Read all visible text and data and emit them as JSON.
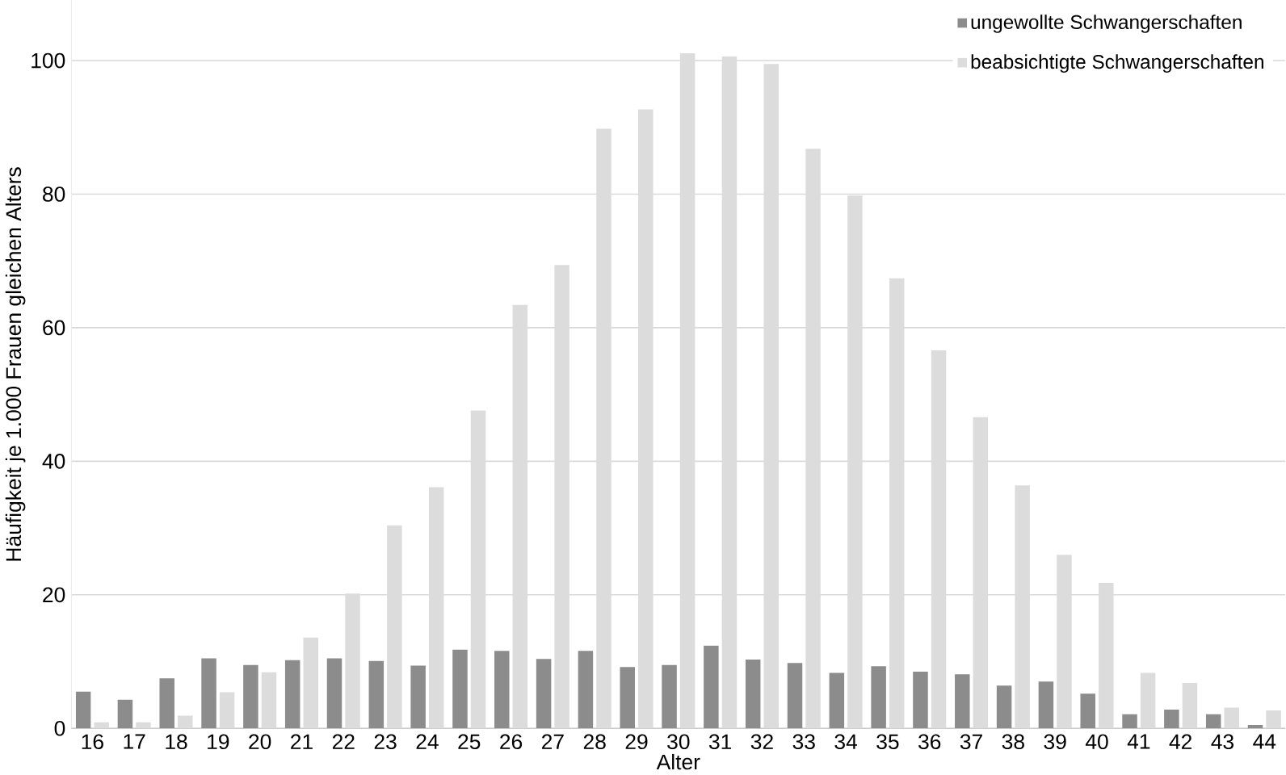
{
  "chart_data": {
    "type": "bar",
    "xlabel": "Alter",
    "ylabel": "Häufigkeit je 1.000 Frauen gleichen Alters",
    "categories": [
      "16",
      "17",
      "18",
      "19",
      "20",
      "21",
      "22",
      "23",
      "24",
      "25",
      "26",
      "27",
      "28",
      "29",
      "30",
      "31",
      "32",
      "33",
      "34",
      "35",
      "36",
      "37",
      "38",
      "39",
      "40",
      "41",
      "42",
      "43",
      "44"
    ],
    "series": [
      {
        "name": "ungewollte Schwangerschaften",
        "color": "#8c8c8c",
        "values": [
          5.5,
          4.3,
          7.5,
          10.5,
          9.5,
          10.2,
          10.5,
          10.1,
          9.4,
          11.8,
          11.6,
          10.4,
          11.6,
          9.2,
          9.5,
          12.4,
          10.3,
          9.8,
          8.3,
          9.3,
          8.5,
          8.1,
          6.4,
          7.0,
          5.2,
          2.1,
          2.8,
          2.1,
          0.5
        ]
      },
      {
        "name": "beabsichtigte Schwangerschaften",
        "color": "#dcdcdc",
        "values": [
          0.9,
          0.9,
          1.9,
          5.4,
          8.4,
          13.6,
          20.2,
          30.4,
          36.1,
          47.6,
          63.4,
          69.4,
          89.8,
          92.7,
          101.1,
          100.6,
          99.5,
          86.8,
          79.8,
          67.4,
          56.6,
          46.6,
          36.4,
          26.0,
          21.8,
          8.3,
          6.8,
          3.1,
          2.7
        ]
      }
    ],
    "ylim": [
      0,
      109
    ],
    "yticks": [
      0,
      20,
      40,
      60,
      80,
      100
    ],
    "grid": "y",
    "legend": "top right"
  }
}
